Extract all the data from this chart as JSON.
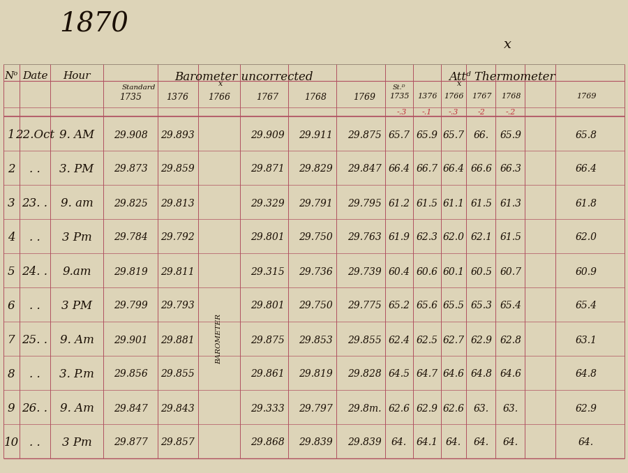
{
  "bg_color": "#ddd4b8",
  "title_text": "1870",
  "x_mark": "x",
  "rows": [
    {
      "no": "1",
      "date": "22.Oct",
      "hour": "9. AM",
      "b0": "29.908",
      "b1": "29.893",
      "b3": "29.909",
      "b4": "29.911",
      "b5": "29.875",
      "t0": "65.7",
      "t1": "65.9",
      "t2": "65.7",
      "t3": "66.",
      "t4": "65.9",
      "t5": "65.8"
    },
    {
      "no": "2",
      "date": ". .",
      "hour": "3. PM",
      "b0": "29.873",
      "b1": "29.859",
      "b3": "29.871",
      "b4": "29.829",
      "b5": "29.847",
      "t0": "66.4",
      "t1": "66.7",
      "t2": "66.4",
      "t3": "66.6",
      "t4": "66.3",
      "t5": "66.4"
    },
    {
      "no": "3",
      "date": "23. .",
      "hour": "9. am",
      "b0": "29.825",
      "b1": "29.813",
      "b3": "29.329",
      "b4": "29.791",
      "b5": "29.795",
      "t0": "61.2",
      "t1": "61.5",
      "t2": "61.1",
      "t3": "61.5",
      "t4": "61.3",
      "t5": "61.8"
    },
    {
      "no": "4",
      "date": ". .",
      "hour": "3 Pm",
      "b0": "29.784",
      "b1": "29.792",
      "b3": "29.801",
      "b4": "29.750",
      "b5": "29.763",
      "t0": "61.9",
      "t1": "62.3",
      "t2": "62.0",
      "t3": "62.1",
      "t4": "61.5",
      "t5": "62.0"
    },
    {
      "no": "5",
      "date": "24. .",
      "hour": "9.am",
      "b0": "29.819",
      "b1": "29.811",
      "b3": "29.315",
      "b4": "29.736",
      "b5": "29.739",
      "t0": "60.4",
      "t1": "60.6",
      "t2": "60.1",
      "t3": "60.5",
      "t4": "60.7",
      "t5": "60.9"
    },
    {
      "no": "6",
      "date": ". .",
      "hour": "3 PM",
      "b0": "29.799",
      "b1": "29.793",
      "b3": "29.801",
      "b4": "29.750",
      "b5": "29.775",
      "t0": "65.2",
      "t1": "65.6",
      "t2": "65.5",
      "t3": "65.3",
      "t4": "65.4",
      "t5": "65.4"
    },
    {
      "no": "7",
      "date": "25. .",
      "hour": "9. Am",
      "b0": "29.901",
      "b1": "29.881",
      "b3": "29.875",
      "b4": "29.853",
      "b5": "29.855",
      "t0": "62.4",
      "t1": "62.5",
      "t2": "62.7",
      "t3": "62.9",
      "t4": "62.8",
      "t5": "63.1"
    },
    {
      "no": "8",
      "date": ". .",
      "hour": "3. P.m",
      "b0": "29.856",
      "b1": "29.855",
      "b3": "29.861",
      "b4": "29.819",
      "b5": "29.828",
      "t0": "64.5",
      "t1": "64.7",
      "t2": "64.6",
      "t3": "64.8",
      "t4": "64.6",
      "t5": "64.8"
    },
    {
      "no": "9",
      "date": "26. .",
      "hour": "9. Am",
      "b0": "29.847",
      "b1": "29.843",
      "b3": "29.333",
      "b4": "29.797",
      "b5": "29.8m.",
      "t0": "62.6",
      "t1": "62.9",
      "t2": "62.6",
      "t3": "63.",
      "t4": "63.",
      "t5": "62.9"
    },
    {
      "no": "10",
      "date": ". .",
      "hour": "3 Pm",
      "b0": "29.877",
      "b1": "29.857",
      "b3": "29.868",
      "b4": "29.839",
      "b5": "29.839",
      "t0": "64.",
      "t1": "64.1",
      "t2": "64.",
      "t3": "64.",
      "t4": "64.",
      "t5": "64."
    }
  ],
  "line_color": "#b05060",
  "text_color": "#1a0f05",
  "red_color": "#c0303a"
}
